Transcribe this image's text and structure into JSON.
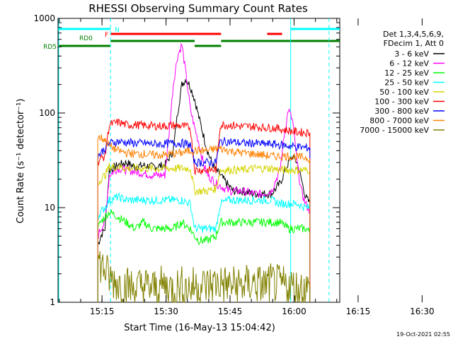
{
  "chart_data": {
    "type": "line",
    "title": "RHESSI Observing Summary Count Rates",
    "xlabel": "Start Time (16-May-13 15:04:42)",
    "ylabel": "Count Rate (s⁻¹ detector⁻¹)",
    "yscale": "log",
    "ylim": [
      1,
      1000
    ],
    "xlim_minutes": [
      0,
      66
    ],
    "y_ticks": [
      "1",
      "10",
      "100",
      "1000"
    ],
    "x_ticks": [
      {
        "label": "15:15",
        "t": 10.3
      },
      {
        "label": "15:30",
        "t": 25.3
      },
      {
        "label": "15:45",
        "t": 40.3
      },
      {
        "label": "16:00",
        "t": 55.3
      },
      {
        "label": "16:15",
        "t": 70.3
      },
      {
        "label": "16:30",
        "t": 85.3
      }
    ],
    "legend_header": [
      "Det 1,3,4,5,6,9,",
      "FDecim 1, Att 0"
    ],
    "legend_position": "right",
    "series": [
      {
        "name": "3 - 6 keV",
        "color": "#000000",
        "points": [
          [
            9.3,
            4
          ],
          [
            10,
            5
          ],
          [
            11,
            6
          ],
          [
            12,
            25
          ],
          [
            14,
            28
          ],
          [
            16,
            30
          ],
          [
            18,
            27
          ],
          [
            20,
            28
          ],
          [
            22,
            27
          ],
          [
            25,
            28
          ],
          [
            27,
            40
          ],
          [
            28,
            100
          ],
          [
            29,
            200
          ],
          [
            30,
            230
          ],
          [
            31,
            190
          ],
          [
            32,
            140
          ],
          [
            33,
            90
          ],
          [
            34,
            60
          ],
          [
            35,
            40
          ],
          [
            36,
            30
          ],
          [
            37,
            25
          ],
          [
            38,
            22
          ],
          [
            40,
            17
          ],
          [
            41,
            15
          ],
          [
            43,
            15
          ],
          [
            46,
            14
          ],
          [
            48,
            14
          ],
          [
            50,
            14
          ],
          [
            52,
            18
          ],
          [
            54,
            30
          ],
          [
            55,
            35
          ],
          [
            56,
            30
          ],
          [
            57,
            20
          ],
          [
            58,
            13
          ],
          [
            59,
            11
          ]
        ]
      },
      {
        "name": "6 - 12 keV",
        "color": "#ff00ff",
        "points": [
          [
            9.3,
            5
          ],
          [
            10,
            6
          ],
          [
            11,
            7
          ],
          [
            12,
            22
          ],
          [
            14,
            26
          ],
          [
            16,
            25
          ],
          [
            18,
            24
          ],
          [
            20,
            23
          ],
          [
            22,
            22
          ],
          [
            25,
            22
          ],
          [
            26,
            60
          ],
          [
            27,
            200
          ],
          [
            28,
            400
          ],
          [
            29,
            530
          ],
          [
            30,
            250
          ],
          [
            31,
            110
          ],
          [
            32,
            70
          ],
          [
            33,
            48
          ],
          [
            34,
            30
          ],
          [
            35,
            22
          ],
          [
            36,
            20
          ],
          [
            37,
            18
          ],
          [
            38,
            17
          ],
          [
            40,
            15
          ],
          [
            43,
            15
          ],
          [
            46,
            14
          ],
          [
            48,
            14
          ],
          [
            50,
            15
          ],
          [
            52,
            25
          ],
          [
            53,
            60
          ],
          [
            54,
            110
          ],
          [
            55,
            80
          ],
          [
            56,
            30
          ],
          [
            57,
            15
          ],
          [
            58,
            11
          ],
          [
            59,
            9
          ]
        ]
      },
      {
        "name": "12 - 25 keV",
        "color": "#00ff00",
        "points": [
          [
            9.3,
            6
          ],
          [
            10,
            7
          ],
          [
            11,
            8
          ],
          [
            12,
            9
          ],
          [
            14,
            8
          ],
          [
            16,
            7
          ],
          [
            18,
            6
          ],
          [
            20,
            7
          ],
          [
            22,
            6
          ],
          [
            25,
            6
          ],
          [
            27,
            6
          ],
          [
            29,
            7
          ],
          [
            31,
            6
          ],
          [
            32,
            5
          ],
          [
            33,
            4.5
          ],
          [
            35,
            4.5
          ],
          [
            37,
            5
          ],
          [
            38,
            7
          ],
          [
            40,
            7
          ],
          [
            43,
            7
          ],
          [
            46,
            7
          ],
          [
            48,
            7
          ],
          [
            50,
            7
          ],
          [
            52,
            7
          ],
          [
            54,
            6
          ],
          [
            56,
            6
          ],
          [
            58,
            6
          ],
          [
            59,
            5.5
          ]
        ]
      },
      {
        "name": "25 - 50 keV",
        "color": "#00ffff",
        "points": [
          [
            9.3,
            8
          ],
          [
            10,
            9
          ],
          [
            11,
            10
          ],
          [
            12,
            12
          ],
          [
            14,
            13
          ],
          [
            16,
            12
          ],
          [
            18,
            12
          ],
          [
            20,
            12
          ],
          [
            22,
            12
          ],
          [
            25,
            12
          ],
          [
            27,
            12
          ],
          [
            29,
            12
          ],
          [
            31,
            11
          ],
          [
            32,
            6
          ],
          [
            35,
            6
          ],
          [
            37,
            6
          ],
          [
            38,
            11
          ],
          [
            40,
            12
          ],
          [
            43,
            12
          ],
          [
            46,
            12
          ],
          [
            48,
            12
          ],
          [
            50,
            12
          ],
          [
            52,
            11
          ],
          [
            54,
            11
          ],
          [
            56,
            11
          ],
          [
            58,
            10
          ],
          [
            59,
            10
          ]
        ]
      },
      {
        "name": "50 - 100 keV",
        "color": "#d4d400",
        "points": [
          [
            9.3,
            18
          ],
          [
            10,
            20
          ],
          [
            11,
            22
          ],
          [
            12,
            27
          ],
          [
            14,
            27
          ],
          [
            16,
            26
          ],
          [
            18,
            26
          ],
          [
            20,
            26
          ],
          [
            22,
            26
          ],
          [
            25,
            26
          ],
          [
            27,
            26
          ],
          [
            29,
            26
          ],
          [
            31,
            26
          ],
          [
            32,
            15
          ],
          [
            35,
            15
          ],
          [
            37,
            16
          ],
          [
            38,
            25
          ],
          [
            40,
            25
          ],
          [
            43,
            25
          ],
          [
            46,
            26
          ],
          [
            48,
            26
          ],
          [
            50,
            26
          ],
          [
            52,
            25
          ],
          [
            54,
            25
          ],
          [
            56,
            25
          ],
          [
            58,
            25
          ],
          [
            59,
            25
          ]
        ]
      },
      {
        "name": "100 - 300 keV",
        "color": "#ff0000",
        "points": [
          [
            9.3,
            30
          ],
          [
            10,
            33
          ],
          [
            11,
            35
          ],
          [
            12,
            75
          ],
          [
            14,
            80
          ],
          [
            16,
            75
          ],
          [
            18,
            75
          ],
          [
            20,
            74
          ],
          [
            22,
            73
          ],
          [
            25,
            73
          ],
          [
            27,
            74
          ],
          [
            29,
            73
          ],
          [
            31,
            70
          ],
          [
            32,
            25
          ],
          [
            35,
            25
          ],
          [
            37,
            25
          ],
          [
            38,
            75
          ],
          [
            40,
            75
          ],
          [
            43,
            72
          ],
          [
            46,
            72
          ],
          [
            48,
            70
          ],
          [
            50,
            70
          ],
          [
            52,
            68
          ],
          [
            54,
            65
          ],
          [
            56,
            63
          ],
          [
            58,
            62
          ],
          [
            59,
            62
          ]
        ]
      },
      {
        "name": "300 - 800 keV",
        "color": "#0000ff",
        "points": [
          [
            9.3,
            35
          ],
          [
            10,
            38
          ],
          [
            11,
            42
          ],
          [
            12,
            48
          ],
          [
            14,
            50
          ],
          [
            16,
            49
          ],
          [
            18,
            48
          ],
          [
            20,
            48
          ],
          [
            22,
            47
          ],
          [
            25,
            47
          ],
          [
            27,
            48
          ],
          [
            29,
            48
          ],
          [
            31,
            46
          ],
          [
            32,
            30
          ],
          [
            35,
            30
          ],
          [
            37,
            30
          ],
          [
            38,
            50
          ],
          [
            40,
            50
          ],
          [
            43,
            48
          ],
          [
            46,
            48
          ],
          [
            48,
            47
          ],
          [
            50,
            47
          ],
          [
            52,
            46
          ],
          [
            54,
            45
          ],
          [
            56,
            44
          ],
          [
            58,
            43
          ],
          [
            59,
            43
          ]
        ]
      },
      {
        "name": "800 - 7000 keV",
        "color": "#ff8000",
        "points": [
          [
            9.3,
            55
          ],
          [
            10,
            55
          ],
          [
            11,
            52
          ],
          [
            12,
            45
          ],
          [
            14,
            40
          ],
          [
            16,
            38
          ],
          [
            18,
            37
          ],
          [
            20,
            37
          ],
          [
            22,
            36
          ],
          [
            25,
            36
          ],
          [
            27,
            37
          ],
          [
            29,
            38
          ],
          [
            31,
            40
          ],
          [
            32,
            40
          ],
          [
            35,
            40
          ],
          [
            37,
            42
          ],
          [
            38,
            42
          ],
          [
            40,
            40
          ],
          [
            43,
            38
          ],
          [
            46,
            37
          ],
          [
            48,
            36
          ],
          [
            50,
            35
          ],
          [
            52,
            35
          ],
          [
            54,
            35
          ],
          [
            56,
            34
          ],
          [
            58,
            34
          ],
          [
            59,
            33
          ]
        ]
      },
      {
        "name": "7000 - 15000 keV",
        "color": "#808000",
        "points": [
          [
            9.3,
            2.8
          ],
          [
            10,
            2.5
          ],
          [
            11,
            2.2
          ],
          [
            12,
            1.8
          ],
          [
            14,
            1.6
          ],
          [
            16,
            1.5
          ],
          [
            18,
            1.4
          ],
          [
            20,
            1.5
          ],
          [
            22,
            1.4
          ],
          [
            25,
            1.5
          ],
          [
            27,
            1.4
          ],
          [
            29,
            1.5
          ],
          [
            31,
            1.4
          ],
          [
            32,
            1.5
          ],
          [
            35,
            1.5
          ],
          [
            37,
            1.6
          ],
          [
            38,
            1.6
          ],
          [
            40,
            1.5
          ],
          [
            43,
            1.5
          ],
          [
            46,
            1.6
          ],
          [
            48,
            1.5
          ],
          [
            50,
            1.6
          ],
          [
            52,
            1.5
          ],
          [
            54,
            1.5
          ],
          [
            56,
            1.4
          ],
          [
            58,
            1.4
          ],
          [
            59,
            1.3
          ]
        ]
      }
    ],
    "flag_bars": [
      {
        "name": "N",
        "color": "#00ffff",
        "row": 0,
        "segments": [
          [
            0,
            12.3
          ],
          [
            54.5,
            66
          ]
        ]
      },
      {
        "name": "F",
        "color": "#ff0000",
        "row": 1,
        "segments": [
          [
            12.3,
            38.2
          ],
          [
            49,
            52.5
          ]
        ]
      },
      {
        "name": "RD0",
        "color": "#008000",
        "row": 2,
        "segments": [
          [
            12.3,
            32
          ],
          [
            38.2,
            66
          ]
        ]
      },
      {
        "name": "RD5",
        "color": "#008000",
        "row": 3,
        "segments": [
          [
            0,
            12.3
          ],
          [
            32,
            38.2
          ]
        ]
      }
    ],
    "vertical_lines": [
      {
        "t": 12.3,
        "color": "#00ffff",
        "style": "dashed"
      },
      {
        "t": 54.5,
        "color": "#00ffff",
        "style": "solid"
      },
      {
        "t": 63.5,
        "color": "#00ffff",
        "style": "dashed"
      }
    ]
  },
  "footer_date": "19-Oct-2021 02:55"
}
